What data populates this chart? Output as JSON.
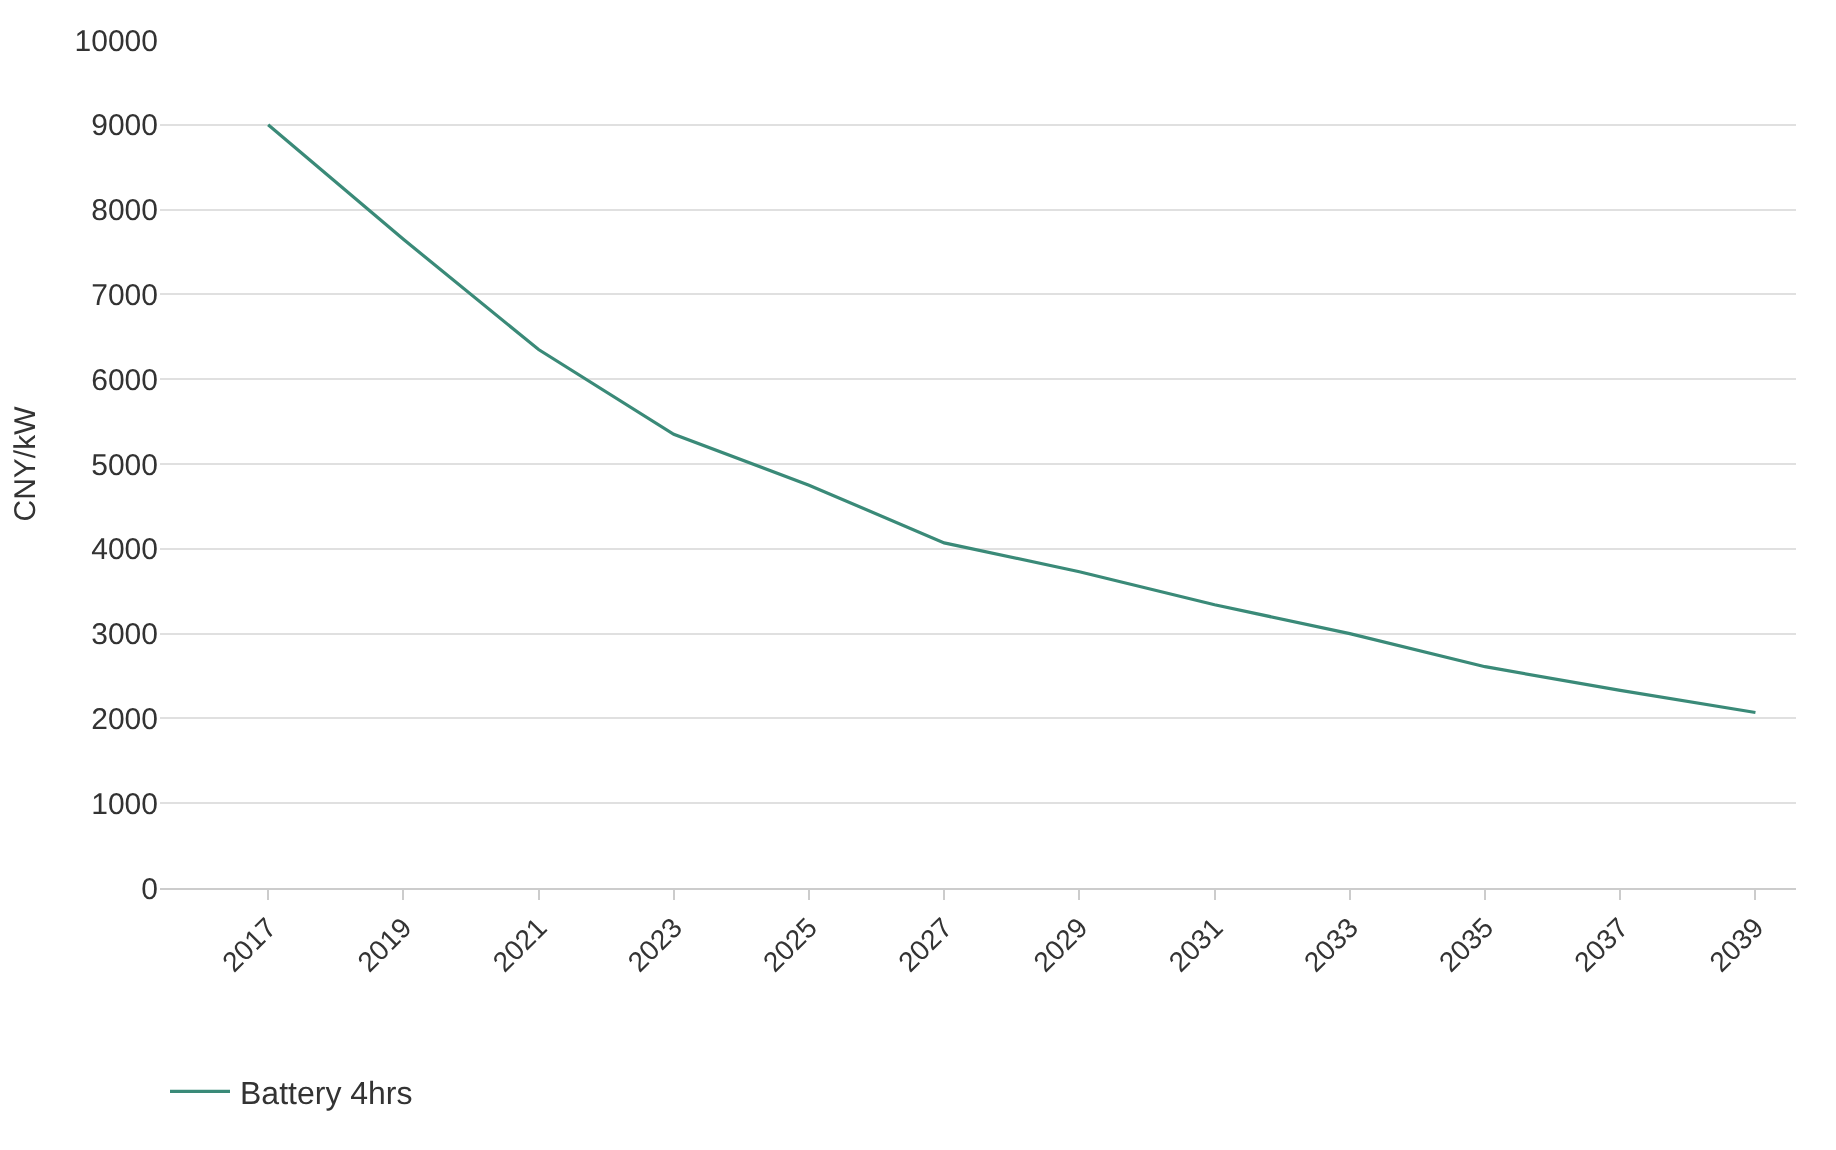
{
  "chart_data": {
    "type": "line",
    "ylabel": "CNY/kW",
    "x": [
      2017,
      2019,
      2021,
      2023,
      2025,
      2027,
      2029,
      2031,
      2033,
      2035,
      2037,
      2039
    ],
    "series": [
      {
        "name": "Battery 4hrs",
        "color": "#3a8a78",
        "values": [
          9000,
          7650,
          6350,
          5350,
          4750,
          4070,
          3730,
          3340,
          3000,
          2610,
          2330,
          2070
        ]
      }
    ],
    "xlim": [
      2015.4,
      2039.6
    ],
    "xticks": [
      2017,
      2019,
      2021,
      2023,
      2025,
      2027,
      2029,
      2031,
      2033,
      2035,
      2037,
      2039
    ],
    "ylim": [
      0,
      10000
    ],
    "yticks": [
      0,
      1000,
      2000,
      3000,
      4000,
      5000,
      6000,
      7000,
      8000,
      9000,
      10000
    ],
    "grid": "y",
    "legend": "bottom left",
    "marker": "none",
    "line_style": "solid"
  }
}
